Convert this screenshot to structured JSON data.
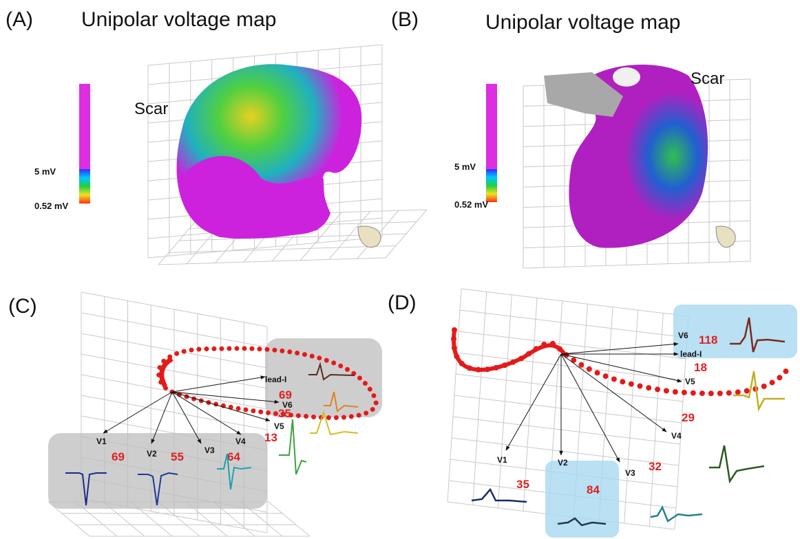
{
  "panel_a": {
    "label": "(A)",
    "title": "Unipolar voltage map",
    "scale_high": "5 mV",
    "scale_low": "0.52 mV",
    "annotation": "Scar"
  },
  "panel_b": {
    "label": "(B)",
    "title": "Unipolar voltage map",
    "scale_high": "5 mV",
    "scale_low": "0.52 mV",
    "annotation": "Scar"
  },
  "panel_c": {
    "label": "(C)",
    "lead_labels": [
      "lead-I",
      "V6",
      "V5",
      "V1",
      "V2",
      "V3",
      "V4"
    ],
    "numbers": [
      69,
      35,
      13,
      69,
      55,
      64
    ]
  },
  "panel_d": {
    "label": "(D)",
    "lead_labels": [
      "V6",
      "lead-I",
      "V5",
      "V4",
      "V1",
      "V2",
      "V3"
    ],
    "numbers": [
      118,
      18,
      29,
      35,
      84,
      32
    ]
  }
}
